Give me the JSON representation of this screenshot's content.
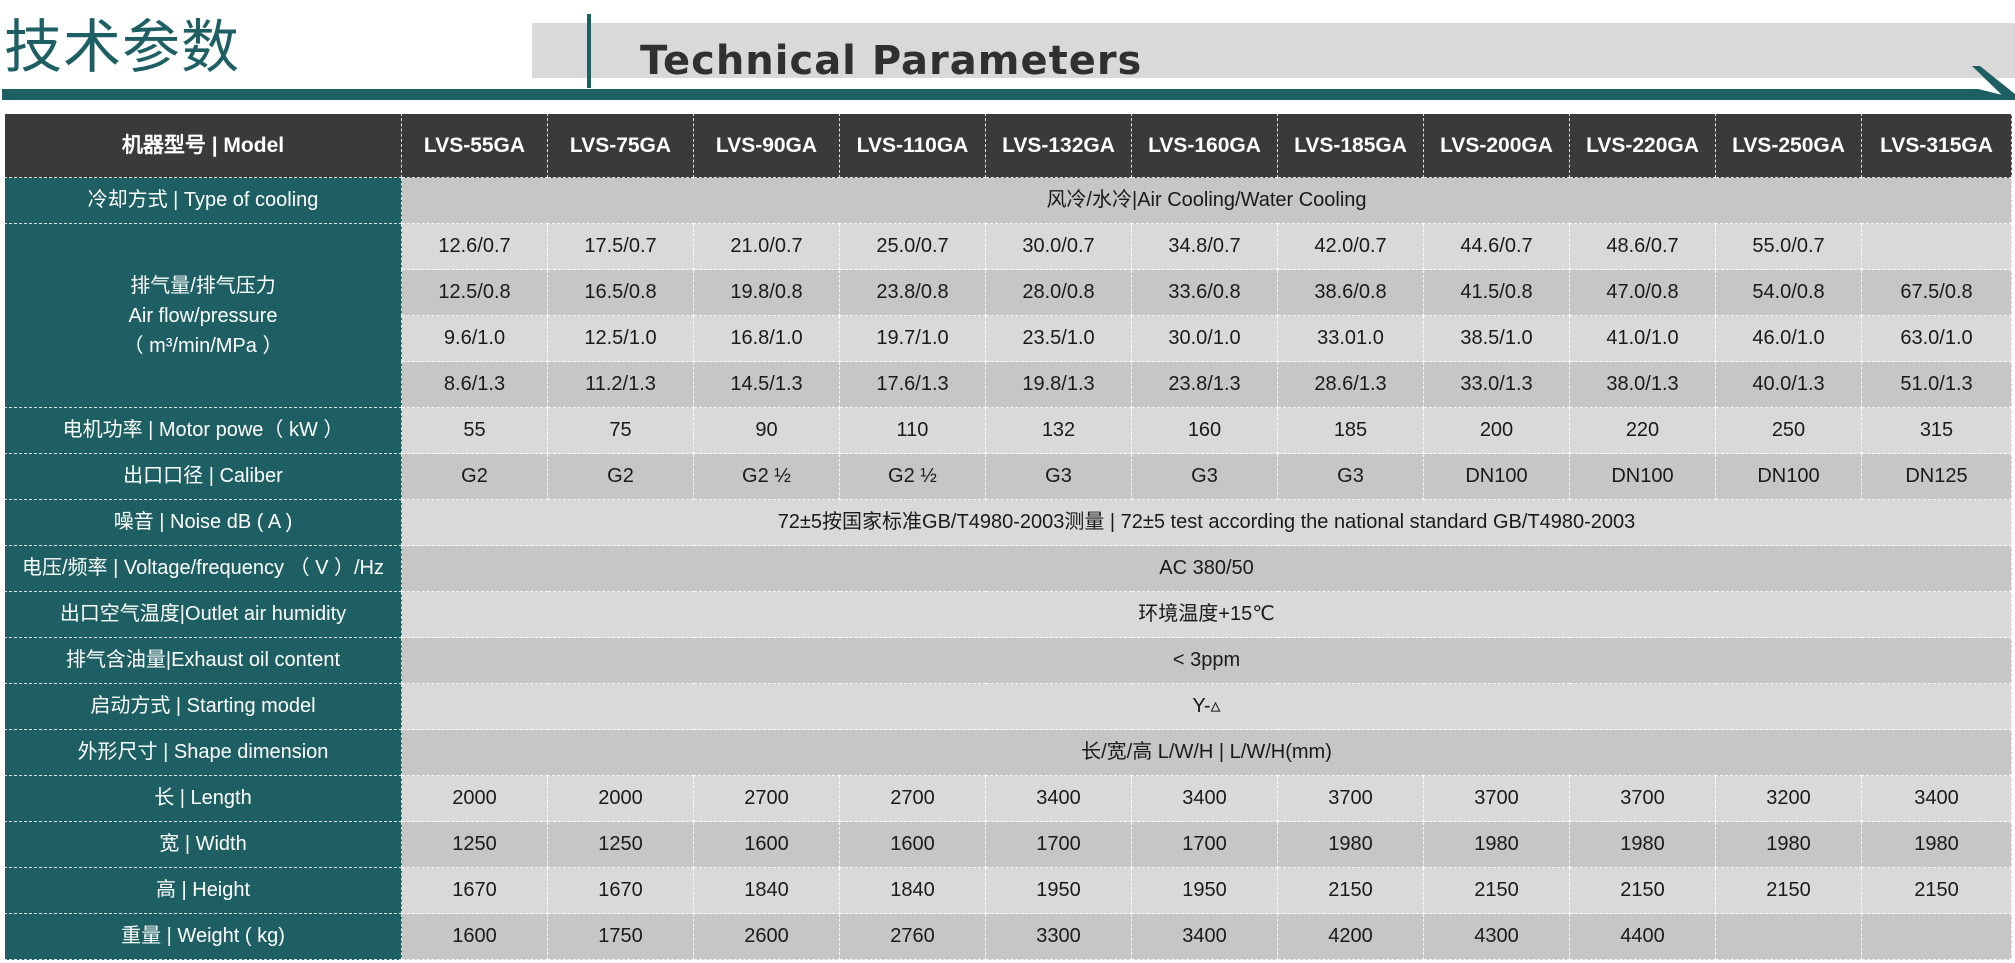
{
  "header": {
    "title_cn": "技术参数",
    "title_en": "Technical Parameters"
  },
  "colors": {
    "accent": "#1e5f63",
    "header_row": "#3a3a3a",
    "row_light": "#d9d9d9",
    "row_dark": "#c6c6c6"
  },
  "table": {
    "corner": "机器型号 | Model",
    "models": [
      "LVS-55GA",
      "LVS-75GA",
      "LVS-90GA",
      "LVS-110GA",
      "LVS-132GA",
      "LVS-160GA",
      "LVS-185GA",
      "LVS-200GA",
      "LVS-220GA",
      "LVS-250GA",
      "LVS-315GA"
    ],
    "cooling": {
      "label": "冷却方式 | Type of cooling",
      "value": "风冷/水冷|Air Cooling/Water Cooling"
    },
    "airflow": {
      "label_line1": "排气量/排气压力",
      "label_line2": "Air flow/pressure",
      "label_line3": "（ m³/min/MPa ）",
      "rows": [
        [
          "12.6/0.7",
          "17.5/0.7",
          "21.0/0.7",
          "25.0/0.7",
          "30.0/0.7",
          "34.8/0.7",
          "42.0/0.7",
          "44.6/0.7",
          "48.6/0.7",
          "55.0/0.7",
          ""
        ],
        [
          "12.5/0.8",
          "16.5/0.8",
          "19.8/0.8",
          "23.8/0.8",
          "28.0/0.8",
          "33.6/0.8",
          "38.6/0.8",
          "41.5/0.8",
          "47.0/0.8",
          "54.0/0.8",
          "67.5/0.8"
        ],
        [
          "9.6/1.0",
          "12.5/1.0",
          "16.8/1.0",
          "19.7/1.0",
          "23.5/1.0",
          "30.0/1.0",
          "33.01.0",
          "38.5/1.0",
          "41.0/1.0",
          "46.0/1.0",
          "63.0/1.0"
        ],
        [
          "8.6/1.3",
          "11.2/1.3",
          "14.5/1.3",
          "17.6/1.3",
          "19.8/1.3",
          "23.8/1.3",
          "28.6/1.3",
          "33.0/1.3",
          "38.0/1.3",
          "40.0/1.3",
          "51.0/1.3"
        ]
      ]
    },
    "motor": {
      "label": "电机功率 | Motor powe（ kW ）",
      "values": [
        "55",
        "75",
        "90",
        "110",
        "132",
        "160",
        "185",
        "200",
        "220",
        "250",
        "315"
      ]
    },
    "caliber": {
      "label": "出口口径 | Caliber",
      "values": [
        "G2",
        "G2",
        "G2 ½",
        "G2 ½",
        "G3",
        "G3",
        "G3",
        "DN100",
        "DN100",
        "DN100",
        "DN125"
      ]
    },
    "noise": {
      "label": "噪音 | Noise    dB ( A )",
      "value": "72±5按国家标准GB/T4980-2003测量  |   72±5 test according the national standard GB/T4980-2003"
    },
    "voltage": {
      "label": "电压/频率 | Voltage/frequency  （ V ）/Hz",
      "value": "AC 380/50"
    },
    "outlet_temp": {
      "label": "出口空气温度|Outlet air humidity",
      "value": "环境温度+15℃"
    },
    "oil": {
      "label": "排气含油量|Exhaust oil content",
      "value": "< 3ppm"
    },
    "starting": {
      "label": "启动方式 | Starting model",
      "value": "Y-▵"
    },
    "shape": {
      "label": "外形尺寸 | Shape dimension",
      "value": "长/宽/高  L/W/H  |   L/W/H(mm)"
    },
    "length": {
      "label": "长 | Length",
      "values": [
        "2000",
        "2000",
        "2700",
        "2700",
        "3400",
        "3400",
        "3700",
        "3700",
        "3700",
        "3200",
        "3400"
      ]
    },
    "width": {
      "label": "宽 | Width",
      "values": [
        "1250",
        "1250",
        "1600",
        "1600",
        "1700",
        "1700",
        "1980",
        "1980",
        "1980",
        "1980",
        "1980"
      ]
    },
    "height": {
      "label": "高 | Height",
      "values": [
        "1670",
        "1670",
        "1840",
        "1840",
        "1950",
        "1950",
        "2150",
        "2150",
        "2150",
        "2150",
        "2150"
      ]
    },
    "weight": {
      "label": "重量 | Weight ( kg)",
      "values": [
        "1600",
        "1750",
        "2600",
        "2760",
        "3300",
        "3400",
        "4200",
        "4300",
        "4400",
        "",
        ""
      ]
    }
  }
}
